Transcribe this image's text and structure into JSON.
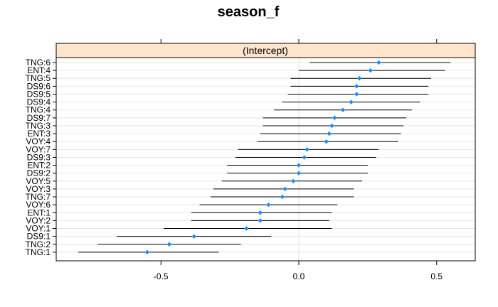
{
  "chart_data": {
    "type": "dotplot",
    "title": "season_f",
    "panel_strip": "(Intercept)",
    "xlabel": "",
    "ylabel": "",
    "xlim": [
      -0.88,
      0.64
    ],
    "xticks": [
      -0.5,
      0.0,
      0.5
    ],
    "xtick_labels": [
      "-0.5",
      "0.0",
      "0.5"
    ],
    "grid": true,
    "point_color": "#1a8cff",
    "categories": [
      "TNG:6",
      "ENT:4",
      "TNG:5",
      "DS9:6",
      "DS9:5",
      "DS9:4",
      "TNG:4",
      "DS9:7",
      "TNG:3",
      "ENT:3",
      "VOY:4",
      "VOY:7",
      "DS9:3",
      "ENT:2",
      "DS9:2",
      "VOY:5",
      "VOY:3",
      "TNG:7",
      "VOY:6",
      "ENT:1",
      "VOY:2",
      "VOY:1",
      "DS9:1",
      "TNG:2",
      "TNG:1"
    ],
    "estimates": [
      0.29,
      0.26,
      0.22,
      0.21,
      0.21,
      0.19,
      0.16,
      0.13,
      0.12,
      0.11,
      0.1,
      0.03,
      0.02,
      0.0,
      0.0,
      -0.02,
      -0.05,
      -0.06,
      -0.11,
      -0.14,
      -0.14,
      -0.19,
      -0.38,
      -0.47,
      -0.55
    ],
    "lower": [
      0.04,
      0.0,
      -0.03,
      -0.03,
      -0.04,
      -0.06,
      -0.09,
      -0.13,
      -0.13,
      -0.14,
      -0.15,
      -0.22,
      -0.23,
      -0.26,
      -0.26,
      -0.28,
      -0.31,
      -0.32,
      -0.36,
      -0.39,
      -0.39,
      -0.49,
      -0.66,
      -0.73,
      -0.8
    ],
    "upper": [
      0.55,
      0.53,
      0.48,
      0.47,
      0.47,
      0.44,
      0.41,
      0.39,
      0.38,
      0.37,
      0.36,
      0.29,
      0.28,
      0.25,
      0.25,
      0.23,
      0.2,
      0.2,
      0.14,
      0.12,
      0.11,
      0.12,
      -0.1,
      -0.21,
      -0.29
    ]
  }
}
